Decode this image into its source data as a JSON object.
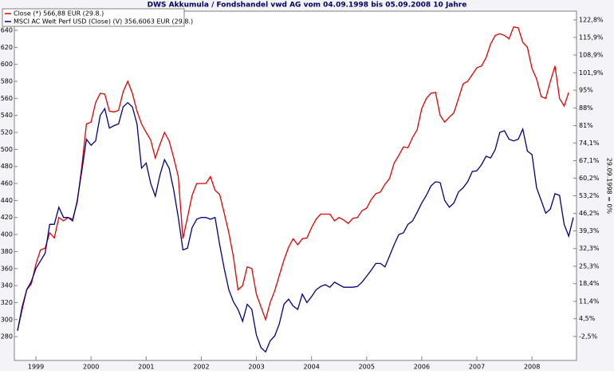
{
  "chart_data": {
    "type": "line",
    "title": "DWS Akkumula / Fondshandel vwd AG vom 04.09.1998 bis 05.09.2008 10 Jahre",
    "y2_label": "29.09.1998 = 0%",
    "categories": [
      null,
      null,
      null,
      null,
      "1999",
      null,
      null,
      null,
      null,
      null,
      null,
      null,
      null,
      null,
      null,
      null,
      "2000",
      null,
      null,
      null,
      null,
      null,
      null,
      null,
      null,
      null,
      null,
      null,
      "2001",
      null,
      null,
      null,
      null,
      null,
      null,
      null,
      null,
      null,
      null,
      null,
      "2002",
      null,
      null,
      null,
      null,
      null,
      null,
      null,
      null,
      null,
      null,
      null,
      "2003",
      null,
      null,
      null,
      null,
      null,
      null,
      null,
      null,
      null,
      null,
      null,
      "2004",
      null,
      null,
      null,
      null,
      null,
      null,
      null,
      null,
      null,
      null,
      null,
      "2005",
      null,
      null,
      null,
      null,
      null,
      null,
      null,
      null,
      null,
      null,
      null,
      "2006",
      null,
      null,
      null,
      null,
      null,
      null,
      null,
      null,
      null,
      null,
      null,
      "2007",
      null,
      null,
      null,
      null,
      null,
      null,
      null,
      null,
      null,
      null,
      null,
      "2008",
      null,
      null,
      null,
      null,
      null,
      null,
      null,
      null,
      null
    ],
    "series": [
      {
        "name": "Close (*) 566,88 EUR (29.8.)",
        "color": "#e00000",
        "values": [
          287,
          312,
          335,
          342,
          365,
          382,
          384,
          402,
          396,
          420,
          416,
          420,
          418,
          438,
          480,
          530,
          532,
          555,
          566,
          565,
          545,
          544,
          546,
          568,
          580,
          566,
          545,
          530,
          520,
          511,
          490,
          506,
          520,
          510,
          490,
          468,
          395,
          420,
          446,
          460,
          460,
          460,
          468,
          452,
          447,
          425,
          402,
          374,
          335,
          340,
          362,
          360,
          330,
          315,
          300,
          320,
          334,
          352,
          370,
          385,
          395,
          388,
          395,
          396,
          408,
          418,
          424,
          424,
          424,
          416,
          420,
          417,
          413,
          419,
          420,
          428,
          431,
          441,
          448,
          450,
          459,
          466,
          484,
          493,
          503,
          502,
          514,
          523,
          548,
          560,
          566,
          567,
          540,
          532,
          538,
          543,
          560,
          577,
          580,
          588,
          596,
          598,
          608,
          624,
          634,
          636,
          634,
          630,
          644,
          643,
          626,
          620,
          595,
          583,
          562,
          560,
          580,
          598,
          560,
          551,
          567,
          null
        ]
      },
      {
        "name": "MSCI AC Welt Perf USD (Close) (V) 356,6063 EUR (29.8.)",
        "color": "#000080",
        "values": [
          287,
          315,
          335,
          345,
          360,
          369,
          378,
          412,
          412,
          432,
          420,
          420,
          416,
          440,
          475,
          512,
          505,
          510,
          540,
          548,
          525,
          528,
          530,
          550,
          555,
          550,
          530,
          478,
          484,
          460,
          445,
          470,
          488,
          478,
          452,
          420,
          382,
          384,
          408,
          418,
          420,
          420,
          418,
          420,
          388,
          360,
          335,
          321,
          312,
          298,
          318,
          312,
          282,
          267,
          262,
          275,
          281,
          295,
          318,
          324,
          316,
          312,
          330,
          320,
          327,
          335,
          339,
          341,
          338,
          344,
          341,
          338,
          338,
          338,
          339,
          344,
          351,
          358,
          366,
          366,
          362,
          375,
          388,
          400,
          402,
          412,
          416,
          426,
          437,
          446,
          457,
          462,
          461,
          440,
          432,
          437,
          450,
          455,
          462,
          474,
          475,
          482,
          492,
          490,
          500,
          520,
          522,
          512,
          510,
          512,
          524,
          498,
          494,
          455,
          440,
          425,
          430,
          448,
          446,
          412,
          398,
          420
        ]
      }
    ],
    "ylim": [
      252,
      662.5
    ],
    "yticks": [
      280,
      300,
      320,
      340,
      360,
      380,
      400,
      420,
      440,
      460,
      480,
      500,
      520,
      540,
      560,
      580,
      600,
      620,
      640
    ],
    "y2lim": [
      -12,
      126.3
    ],
    "y2ticks": [
      {
        "value": -2.5,
        "label": "-2,5%"
      },
      {
        "value": 4.5,
        "label": "4,5%"
      },
      {
        "value": 11.4,
        "label": "11,4%"
      },
      {
        "value": 18.4,
        "label": "18,4%"
      },
      {
        "value": 25.3,
        "label": "25,3%"
      },
      {
        "value": 32.3,
        "label": "32,3%"
      },
      {
        "value": 39.3,
        "label": "39,3%"
      },
      {
        "value": 46.2,
        "label": "46,2%"
      },
      {
        "value": 53.2,
        "label": "53,2%"
      },
      {
        "value": 60.2,
        "label": "60,2%"
      },
      {
        "value": 67.1,
        "label": "67,1%"
      },
      {
        "value": 74.1,
        "label": "74,1%"
      },
      {
        "value": 81,
        "label": "81%"
      },
      {
        "value": 88,
        "label": "88%"
      },
      {
        "value": 95,
        "label": "95%"
      },
      {
        "value": 101.9,
        "label": "101,9%"
      },
      {
        "value": 108.9,
        "label": "108,9%"
      },
      {
        "value": 115.9,
        "label": "115,9%"
      },
      {
        "value": 122.8,
        "label": "122,8%"
      }
    ]
  }
}
